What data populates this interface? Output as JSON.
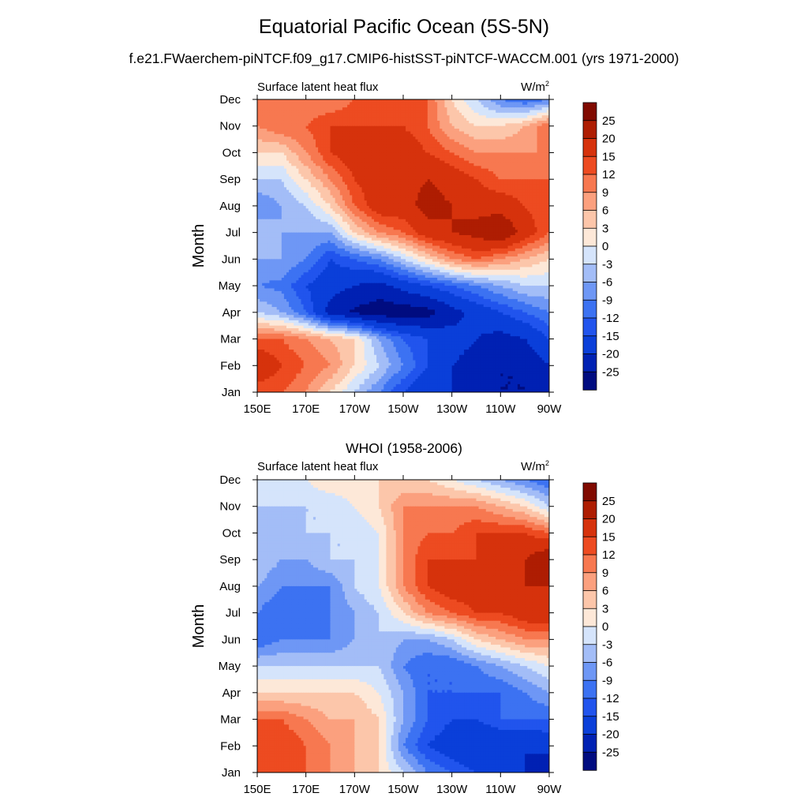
{
  "figure": {
    "title": "Equatorial Pacific Ocean (5S-5N)"
  },
  "colorbar": {
    "levels": [
      -25,
      -20,
      -15,
      -12,
      -9,
      -6,
      -3,
      0,
      3,
      6,
      9,
      12,
      15,
      20,
      25
    ],
    "level_labels": [
      "25",
      "20",
      "15",
      "12",
      "9",
      "6",
      "3",
      "0",
      "-3",
      "-6",
      "-9",
      "-12",
      "-15",
      "-20",
      "-25"
    ],
    "colors": [
      "#000c80",
      "#0021b3",
      "#0a3fd9",
      "#2154ed",
      "#3c72f2",
      "#6e97f5",
      "#a3bdf7",
      "#d5e4fb",
      "#fde8d8",
      "#fcc6aa",
      "#fba07e",
      "#f77850",
      "#ed4b21",
      "#d6320c",
      "#ae1d02",
      "#800a00"
    ]
  },
  "chart_data": [
    {
      "type": "heatmap",
      "title": "f.e21.FWaerchem-piNTCF.f09_g17.CMIP6-histSST-piNTCF-WACCM.001 (yrs 1971-2000)",
      "left_string": "Surface latent heat flux",
      "units": "W/m",
      "units_superscript": "2",
      "xlabel": "",
      "ylabel": "Month",
      "x_tick_labels": [
        "150E",
        "170E",
        "170W",
        "150W",
        "130W",
        "110W",
        "90W"
      ],
      "x_ticks_deg_east": [
        150,
        170,
        190,
        210,
        230,
        250,
        270
      ],
      "xlim_deg_east": [
        150,
        270
      ],
      "y_tick_labels": [
        "Jan",
        "Feb",
        "Mar",
        "Apr",
        "May",
        "Jun",
        "Jul",
        "Aug",
        "Sep",
        "Oct",
        "Nov",
        "Dec"
      ],
      "longitudes_deg_east": [
        150,
        160,
        170,
        180,
        190,
        200,
        210,
        220,
        230,
        240,
        250,
        260,
        270
      ],
      "months": [
        "Jan",
        "Feb",
        "Mar",
        "Apr",
        "May",
        "Jun",
        "Jul",
        "Aug",
        "Sep",
        "Oct",
        "Nov",
        "Dec"
      ],
      "values": [
        [
          12,
          12,
          9,
          3,
          -3,
          -9,
          -15,
          -20,
          -20,
          -22,
          -25,
          -25,
          -25
        ],
        [
          20,
          15,
          12,
          9,
          3,
          -3,
          -9,
          -15,
          -20,
          -22,
          -25,
          -25,
          -20
        ],
        [
          12,
          12,
          9,
          6,
          3,
          -6,
          -12,
          -15,
          -18,
          -20,
          -22,
          -20,
          -15
        ],
        [
          -3,
          -6,
          -12,
          -22,
          -26,
          -28,
          -28,
          -27,
          -22,
          -18,
          -15,
          -12,
          -9
        ],
        [
          -9,
          -10,
          -15,
          -18,
          -20,
          -22,
          -18,
          -15,
          -12,
          -9,
          -6,
          -3,
          -3
        ],
        [
          -6,
          -6,
          -9,
          -15,
          -12,
          -9,
          -3,
          3,
          9,
          12,
          9,
          6,
          3
        ],
        [
          -3,
          -6,
          -6,
          -6,
          3,
          9,
          12,
          18,
          20,
          22,
          25,
          18,
          12
        ],
        [
          -9,
          -6,
          -3,
          3,
          12,
          18,
          18,
          22,
          20,
          18,
          18,
          15,
          12
        ],
        [
          -3,
          -3,
          3,
          9,
          15,
          18,
          18,
          20,
          18,
          15,
          12,
          12,
          12
        ],
        [
          3,
          3,
          9,
          15,
          18,
          20,
          18,
          15,
          12,
          9,
          9,
          9,
          9
        ],
        [
          9,
          12,
          12,
          15,
          15,
          15,
          15,
          12,
          6,
          3,
          3,
          6,
          12
        ],
        [
          9,
          9,
          9,
          9,
          12,
          15,
          12,
          12,
          3,
          -3,
          -9,
          -12,
          -9
        ]
      ],
      "zlim": [
        -25,
        25
      ]
    },
    {
      "type": "heatmap",
      "title": "WHOI (1958-2006)",
      "left_string": "Surface latent heat flux",
      "units": "W/m",
      "units_superscript": "2",
      "xlabel": "",
      "ylabel": "Month",
      "x_tick_labels": [
        "150E",
        "170E",
        "170W",
        "150W",
        "130W",
        "110W",
        "90W"
      ],
      "x_ticks_deg_east": [
        150,
        170,
        190,
        210,
        230,
        250,
        270
      ],
      "xlim_deg_east": [
        150,
        270
      ],
      "y_tick_labels": [
        "Jan",
        "Feb",
        "Mar",
        "Apr",
        "May",
        "Jun",
        "Jul",
        "Aug",
        "Sep",
        "Oct",
        "Nov",
        "Dec"
      ],
      "longitudes_deg_east": [
        150,
        160,
        170,
        180,
        190,
        200,
        210,
        220,
        230,
        240,
        250,
        260,
        270
      ],
      "months": [
        "Jan",
        "Feb",
        "Mar",
        "Apr",
        "May",
        "Jun",
        "Jul",
        "Aug",
        "Sep",
        "Oct",
        "Nov",
        "Dec"
      ],
      "values": [
        [
          12,
          12,
          12,
          9,
          6,
          3,
          -3,
          -9,
          -12,
          -15,
          -18,
          -20,
          -25
        ],
        [
          15,
          15,
          12,
          9,
          6,
          3,
          -9,
          -15,
          -18,
          -20,
          -20,
          -20,
          -18
        ],
        [
          12,
          12,
          9,
          6,
          6,
          3,
          -6,
          -12,
          -15,
          -15,
          -12,
          -12,
          -12
        ],
        [
          3,
          3,
          3,
          3,
          3,
          0,
          -6,
          -12,
          -12,
          -12,
          -12,
          -9,
          -6
        ],
        [
          -3,
          -3,
          -3,
          -3,
          -3,
          -3,
          -9,
          -12,
          -12,
          -9,
          -6,
          -3,
          0
        ],
        [
          -12,
          -9,
          -9,
          -9,
          -6,
          -3,
          -6,
          -6,
          -3,
          3,
          6,
          9,
          9
        ],
        [
          -9,
          -12,
          -12,
          -9,
          -6,
          -3,
          3,
          9,
          12,
          15,
          15,
          18,
          20
        ],
        [
          -6,
          -9,
          -9,
          -9,
          -3,
          0,
          9,
          15,
          18,
          18,
          18,
          20,
          20
        ],
        [
          -3,
          -6,
          -6,
          -3,
          -3,
          0,
          9,
          15,
          15,
          15,
          18,
          20,
          25
        ],
        [
          -3,
          -6,
          -3,
          -3,
          -3,
          0,
          9,
          12,
          12,
          15,
          15,
          15,
          12
        ],
        [
          -3,
          -3,
          -3,
          -3,
          0,
          3,
          9,
          9,
          9,
          9,
          6,
          3,
          -3
        ],
        [
          -3,
          0,
          0,
          3,
          3,
          3,
          3,
          3,
          0,
          -3,
          -6,
          -9,
          -12
        ]
      ],
      "zlim": [
        -25,
        25
      ]
    }
  ]
}
